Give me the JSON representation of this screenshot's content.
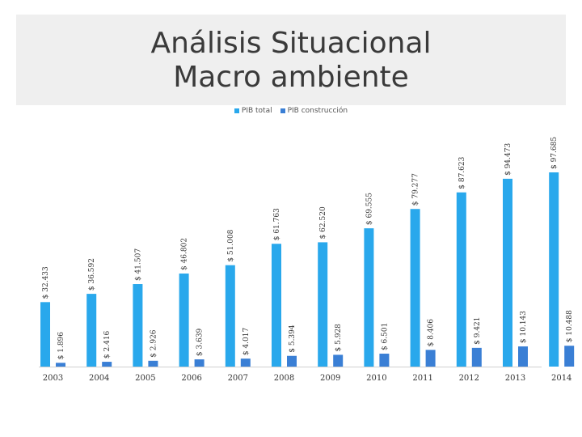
{
  "slide": {
    "title_line1": "Análisis Situacional",
    "title_line2": "Macro ambiente"
  },
  "colors": {
    "pib_total": "#29a8ec",
    "pib_construccion": "#3a7fd5",
    "text": "#3a3a3a",
    "band": "#efefef"
  },
  "chart_data": {
    "type": "bar",
    "title": "",
    "xlabel": "",
    "ylabel": "",
    "legend_position": "top-center",
    "grid": false,
    "categories": [
      "2003",
      "2004",
      "2005",
      "2006",
      "2007",
      "2008",
      "2009",
      "2010",
      "2011",
      "2012",
      "2013",
      "2014"
    ],
    "series": [
      {
        "name": "PIB total",
        "values": [
          32433,
          36592,
          41507,
          46802,
          51008,
          61763,
          62520,
          69555,
          79277,
          87623,
          94473,
          97685
        ],
        "labels": [
          "$ 32.433",
          "$ 36.592",
          "$ 41.507",
          "$ 46.802",
          "$ 51.008",
          "$ 61.763",
          "$ 62.520",
          "$ 69.555",
          "$ 79.277",
          "$ 87.623",
          "$ 94.473",
          "$ 97.685"
        ]
      },
      {
        "name": "PIB construcción",
        "values": [
          1896,
          2416,
          2926,
          3639,
          4017,
          5394,
          5928,
          6501,
          8406,
          9421,
          10143,
          10488
        ],
        "labels": [
          "$ 1.896",
          "$ 2.416",
          "$ 2.926",
          "$ 3.639",
          "$ 4.017",
          "$ 5.394",
          "$ 5.928",
          "$ 6.501",
          "$ 8.406",
          "$ 9.421",
          "$ 10.143",
          "$ 10.488"
        ]
      }
    ]
  }
}
